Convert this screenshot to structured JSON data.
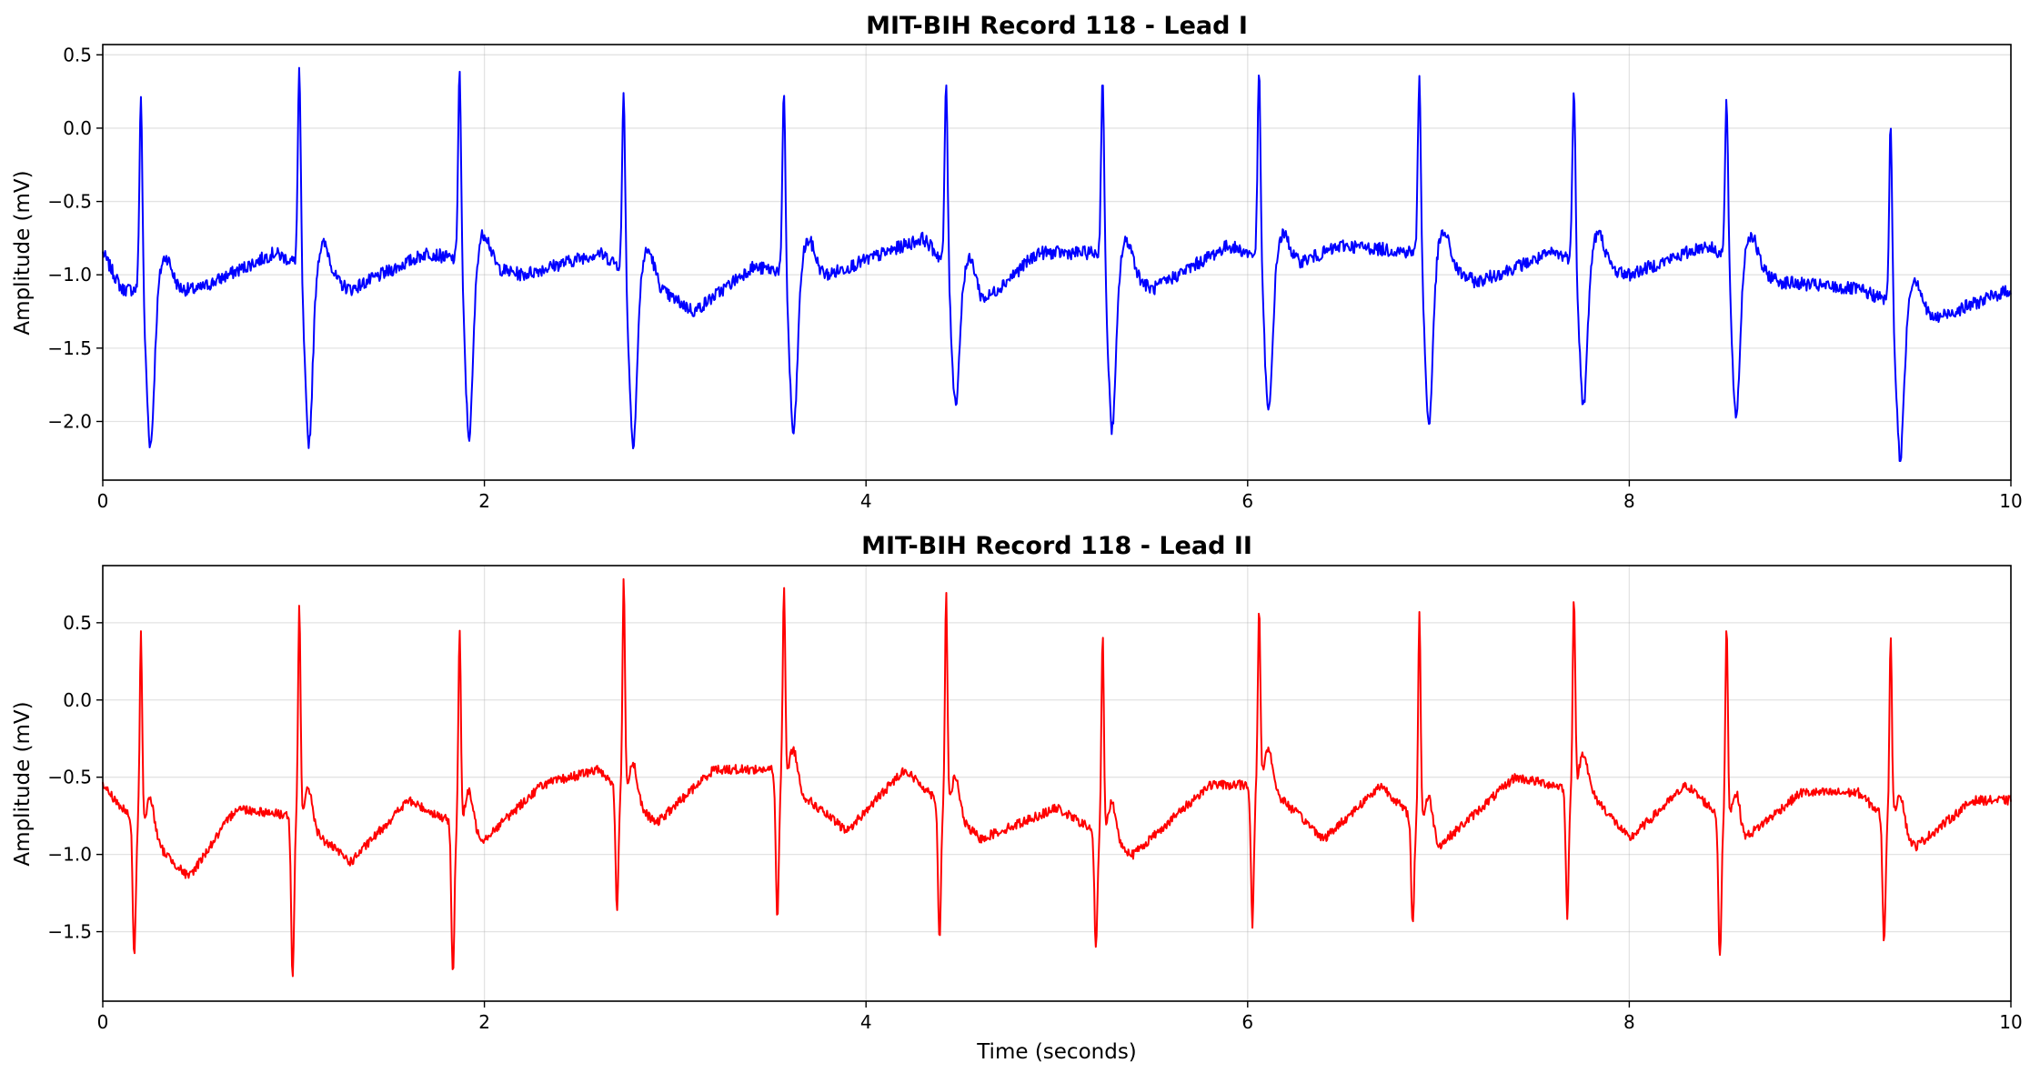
{
  "chart_data": [
    {
      "type": "line",
      "title": "MIT-BIH Record 118 - Lead I",
      "xlabel": "",
      "ylabel": "Amplitude (mV)",
      "xlim": [
        0,
        10
      ],
      "ylim": [
        -2.4,
        0.57
      ],
      "xticks": [
        0,
        2,
        4,
        6,
        8,
        10
      ],
      "yticks": [
        0.5,
        0.0,
        -0.5,
        -1.0,
        -1.5,
        -2.0
      ],
      "ytick_labels": [
        "0.5",
        "0.0",
        "−0.5",
        "−1.0",
        "−1.5",
        "−2.0"
      ],
      "grid": true,
      "color": "#0000ff",
      "series": [
        {
          "beat_times": [
            0.2,
            1.03,
            1.87,
            2.73,
            3.57,
            4.42,
            5.24,
            6.06,
            6.9,
            7.71,
            8.51,
            9.37
          ],
          "r_peaks": [
            0.25,
            0.42,
            0.43,
            0.29,
            0.28,
            0.35,
            0.4,
            0.41,
            0.4,
            0.33,
            0.23,
            0.05
          ],
          "s_troughs": [
            -2.17,
            -2.15,
            -2.11,
            -2.15,
            -2.09,
            -1.88,
            -2.06,
            -1.95,
            -2.02,
            -1.9,
            -1.97,
            -2.25
          ],
          "baseline": [
            [
              0,
              -0.85
            ],
            [
              0.1,
              -1.1
            ],
            [
              0.5,
              -1.1
            ],
            [
              0.9,
              -0.85
            ],
            [
              1.3,
              -1.1
            ],
            [
              1.7,
              -0.85
            ],
            [
              2.2,
              -1.0
            ],
            [
              2.6,
              -0.85
            ],
            [
              3.1,
              -1.25
            ],
            [
              3.4,
              -0.95
            ],
            [
              3.8,
              -1.0
            ],
            [
              4.0,
              -0.9
            ],
            [
              4.3,
              -0.75
            ],
            [
              4.6,
              -1.2
            ],
            [
              4.9,
              -0.85
            ],
            [
              5.2,
              -0.85
            ],
            [
              5.5,
              -1.1
            ],
            [
              5.9,
              -0.8
            ],
            [
              6.2,
              -0.95
            ],
            [
              6.5,
              -0.8
            ],
            [
              6.9,
              -0.85
            ],
            [
              7.2,
              -1.05
            ],
            [
              7.6,
              -0.85
            ],
            [
              8.0,
              -1.0
            ],
            [
              8.4,
              -0.8
            ],
            [
              8.8,
              -1.05
            ],
            [
              9.2,
              -1.1
            ],
            [
              9.6,
              -1.3
            ],
            [
              10.0,
              -1.1
            ]
          ]
        }
      ]
    },
    {
      "type": "line",
      "title": "MIT-BIH Record 118 - Lead II",
      "xlabel": "Time (seconds)",
      "ylabel": "Amplitude (mV)",
      "xlim": [
        0,
        10
      ],
      "ylim": [
        -1.95,
        0.87
      ],
      "xticks": [
        0,
        2,
        4,
        6,
        8,
        10
      ],
      "yticks": [
        0.5,
        0.0,
        -0.5,
        -1.0,
        -1.5
      ],
      "ytick_labels": [
        "0.5",
        "0.0",
        "−0.5",
        "−1.0",
        "−1.5"
      ],
      "grid": true,
      "color": "#ff0000",
      "series": [
        {
          "beat_times": [
            0.2,
            1.03,
            1.87,
            2.73,
            3.57,
            4.42,
            5.24,
            6.06,
            6.9,
            7.71,
            8.51,
            9.37
          ],
          "r_peaks": [
            0.41,
            0.6,
            0.44,
            0.75,
            0.73,
            0.66,
            0.41,
            0.58,
            0.56,
            0.67,
            0.49,
            0.42
          ],
          "q_troughs": [
            -1.67,
            -1.82,
            -1.78,
            -1.36,
            -1.42,
            -1.54,
            -1.62,
            -1.45,
            -1.46,
            -1.39,
            -1.68,
            -1.56
          ],
          "baseline": [
            [
              0,
              -0.55
            ],
            [
              0.1,
              -0.7
            ],
            [
              0.45,
              -1.15
            ],
            [
              0.7,
              -0.7
            ],
            [
              1.0,
              -0.75
            ],
            [
              1.3,
              -1.05
            ],
            [
              1.6,
              -0.65
            ],
            [
              2.0,
              -0.9
            ],
            [
              2.3,
              -0.55
            ],
            [
              2.6,
              -0.45
            ],
            [
              2.9,
              -0.8
            ],
            [
              3.2,
              -0.45
            ],
            [
              3.5,
              -0.45
            ],
            [
              3.9,
              -0.85
            ],
            [
              4.2,
              -0.45
            ],
            [
              4.6,
              -0.9
            ],
            [
              5.0,
              -0.7
            ],
            [
              5.4,
              -1.0
            ],
            [
              5.8,
              -0.55
            ],
            [
              6.1,
              -0.55
            ],
            [
              6.4,
              -0.9
            ],
            [
              6.7,
              -0.55
            ],
            [
              7.0,
              -0.95
            ],
            [
              7.4,
              -0.5
            ],
            [
              7.8,
              -0.6
            ],
            [
              8.0,
              -0.9
            ],
            [
              8.3,
              -0.55
            ],
            [
              8.6,
              -0.9
            ],
            [
              8.9,
              -0.6
            ],
            [
              9.2,
              -0.6
            ],
            [
              9.5,
              -0.95
            ],
            [
              9.8,
              -0.65
            ],
            [
              10.0,
              -0.65
            ]
          ]
        }
      ]
    }
  ]
}
